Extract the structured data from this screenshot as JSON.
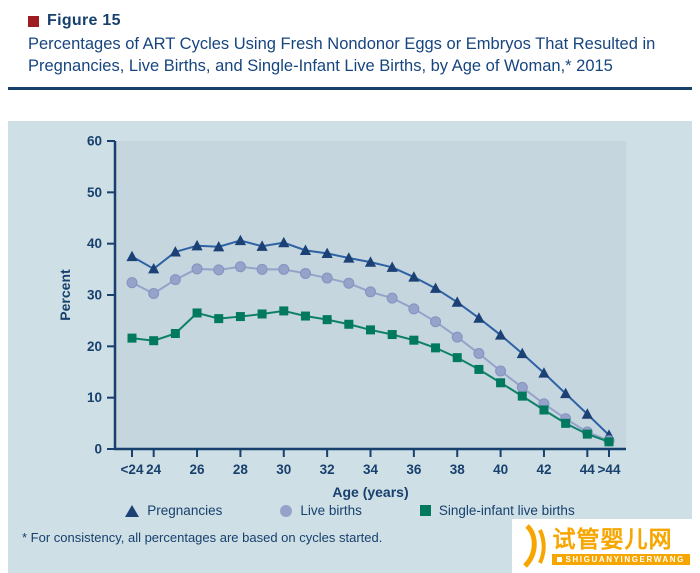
{
  "header": {
    "figure_label": "Figure 15",
    "title": "Percentages of ART Cycles Using Fresh Nondonor Eggs or Embryos That Resulted in Pregnancies, Live Births, and Single-Infant Live Births, by Age of Woman,* 2015"
  },
  "chart_data": {
    "type": "line",
    "title": "Percentages of ART Cycles Using Fresh Nondonor Eggs or Embryos That Resulted in Pregnancies, Live Births, and Single-Infant Live Births, by Age of Woman, 2015",
    "xlabel": "Age (years)",
    "ylabel": "Percent",
    "ylim": [
      0,
      60
    ],
    "y_ticks": [
      0,
      10,
      20,
      30,
      40,
      50,
      60
    ],
    "grid": false,
    "legend_position": "bottom",
    "x": [
      "<24",
      "24",
      "25",
      "26",
      "27",
      "28",
      "29",
      "30",
      "31",
      "32",
      "33",
      "34",
      "35",
      "36",
      "37",
      "38",
      "39",
      "40",
      "41",
      "42",
      "43",
      "44",
      ">44"
    ],
    "x_tick_labels": [
      "<24",
      "24",
      "26",
      "28",
      "30",
      "32",
      "34",
      "36",
      "38",
      "40",
      "42",
      "44",
      ">44"
    ],
    "x_tick_indices": [
      0,
      1,
      3,
      5,
      7,
      9,
      11,
      13,
      15,
      17,
      19,
      21,
      22
    ],
    "series": [
      {
        "name": "Pregnancies",
        "marker": "triangle",
        "color": "#1b4175",
        "line_color": "#2e62a5",
        "values": [
          37.5,
          35.1,
          38.4,
          39.6,
          39.4,
          40.6,
          39.5,
          40.2,
          38.7,
          38.1,
          37.2,
          36.4,
          35.4,
          33.5,
          31.3,
          28.6,
          25.5,
          22.2,
          18.6,
          14.8,
          10.8,
          6.8,
          2.7
        ]
      },
      {
        "name": "Live births",
        "marker": "circle",
        "color": "#95a2ca",
        "line_color": "#95a2ca",
        "values": [
          32.4,
          30.3,
          33.0,
          35.1,
          34.9,
          35.5,
          35.0,
          35.0,
          34.2,
          33.3,
          32.3,
          30.6,
          29.4,
          27.3,
          24.8,
          21.8,
          18.6,
          15.2,
          12.0,
          8.8,
          5.9,
          3.3,
          1.6
        ]
      },
      {
        "name": "Single-infant live births",
        "marker": "square",
        "color": "#00795f",
        "line_color": "#0c8168",
        "values": [
          21.6,
          21.1,
          22.5,
          26.5,
          25.4,
          25.8,
          26.3,
          26.9,
          25.9,
          25.2,
          24.3,
          23.2,
          22.3,
          21.2,
          19.7,
          17.8,
          15.5,
          12.9,
          10.3,
          7.6,
          5.0,
          2.9,
          1.4
        ]
      }
    ]
  },
  "footnote": "* For consistency, all percentages are based on cycles started.",
  "watermark": {
    "brand": "试管婴儿网",
    "subtext": "SHIGUANYINGERWANG"
  },
  "colors": {
    "text_navy": "#17406d",
    "title_blue": "#17457f",
    "figure_bullet_red": "#9e1b22",
    "panel_bg": "#cfdfe6",
    "plot_bg": "#c5d6de",
    "axis": "#17406d",
    "pregnancies_marker": "#1b4175",
    "pregnancies_line": "#2e62a5",
    "live_births": "#95a2ca",
    "single_infant": "#00795f",
    "watermark_orange": "#f7a600"
  }
}
